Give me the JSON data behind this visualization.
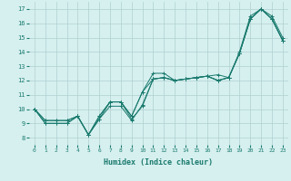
{
  "xlabel": "Humidex (Indice chaleur)",
  "ylabel": "",
  "xlim": [
    -0.5,
    23.5
  ],
  "ylim": [
    7.5,
    17.5
  ],
  "xticks": [
    0,
    1,
    2,
    3,
    4,
    5,
    6,
    7,
    8,
    9,
    10,
    11,
    12,
    13,
    14,
    15,
    16,
    17,
    18,
    19,
    20,
    21,
    22,
    23
  ],
  "yticks": [
    8,
    9,
    10,
    11,
    12,
    13,
    14,
    15,
    16,
    17
  ],
  "line_color": "#1a7a6e",
  "bg_color": "#d6f0ef",
  "grid_color": "#b0d0d0",
  "series": [
    [
      10.0,
      9.0,
      9.0,
      9.0,
      9.5,
      8.2,
      9.3,
      10.5,
      10.5,
      9.3,
      10.2,
      12.1,
      12.2,
      12.0,
      12.1,
      12.2,
      12.3,
      12.0,
      12.2,
      13.9,
      16.3,
      17.0,
      16.3,
      14.8
    ],
    [
      10.0,
      9.0,
      9.0,
      9.0,
      9.5,
      8.2,
      9.3,
      10.2,
      10.2,
      9.2,
      10.3,
      12.1,
      12.2,
      12.0,
      12.1,
      12.2,
      12.3,
      12.0,
      12.2,
      13.9,
      16.3,
      17.0,
      16.3,
      14.8
    ],
    [
      10.0,
      9.2,
      9.2,
      9.2,
      9.5,
      8.2,
      9.5,
      10.5,
      10.5,
      9.5,
      11.2,
      12.1,
      12.2,
      12.0,
      12.1,
      12.2,
      12.3,
      12.0,
      12.2,
      13.9,
      16.3,
      17.0,
      16.3,
      14.8
    ],
    [
      10.0,
      9.2,
      9.2,
      9.2,
      9.5,
      8.2,
      9.5,
      10.5,
      10.5,
      9.5,
      11.2,
      12.5,
      12.5,
      12.0,
      12.1,
      12.2,
      12.3,
      12.4,
      12.2,
      14.0,
      16.5,
      17.0,
      16.5,
      15.0
    ]
  ]
}
